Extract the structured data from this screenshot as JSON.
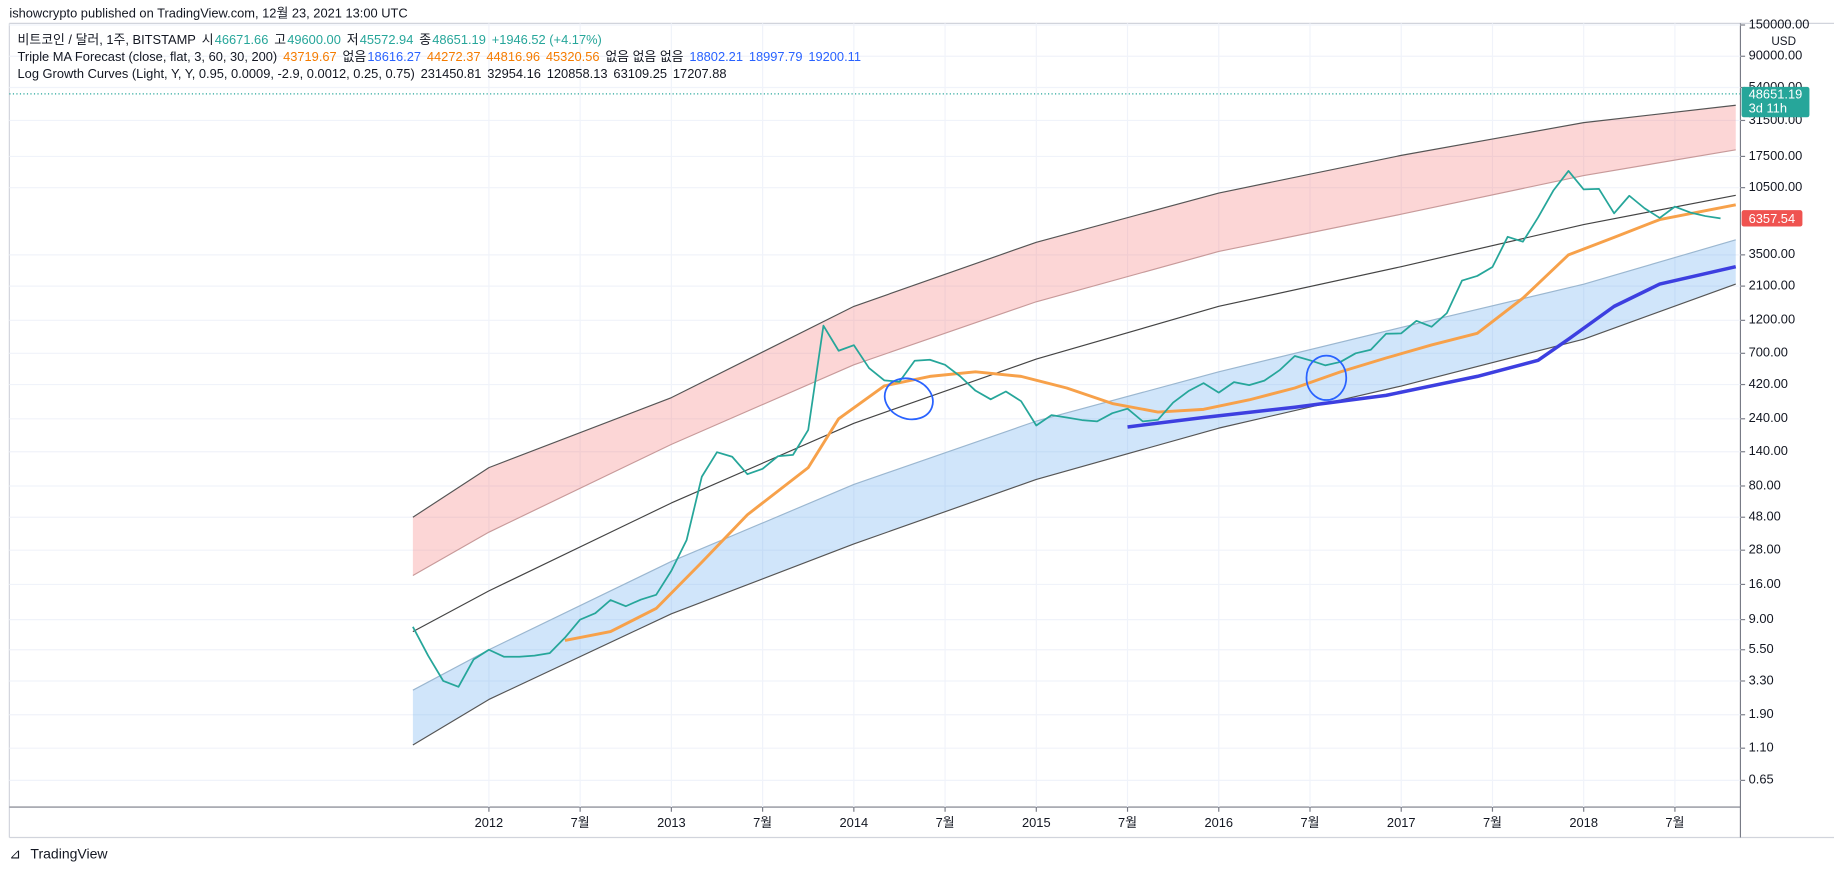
{
  "header": {
    "byline": "ishowcrypto published on TradingView.com, 12월 23, 2021 13:00 UTC",
    "legend": [
      {
        "label": "비트코인 / 달러, 1주, BITSTAMP",
        "items": [
          {
            "text": "시",
            "color": "#131722"
          },
          {
            "text": "46671.66",
            "color": "#26a69a"
          },
          {
            "text": "고",
            "color": "#131722"
          },
          {
            "text": "49600.00",
            "color": "#26a69a"
          },
          {
            "text": "저",
            "color": "#131722"
          },
          {
            "text": "45572.94",
            "color": "#26a69a"
          },
          {
            "text": "종",
            "color": "#131722"
          },
          {
            "text": "48651.19",
            "color": "#26a69a"
          },
          {
            "text": "+1946.52 (+4.17%)",
            "color": "#26a69a"
          }
        ]
      },
      {
        "label": "Triple MA Forecast (close, flat, 3, 60, 30, 200)",
        "items": [
          {
            "text": "43719.67",
            "color": "#f57c00"
          },
          {
            "text": "없음",
            "color": "#131722"
          },
          {
            "text": "18616.27",
            "color": "#2962ff"
          },
          {
            "text": "44272.37",
            "color": "#f57c00"
          },
          {
            "text": "44816.96",
            "color": "#f57c00"
          },
          {
            "text": "45320.56",
            "color": "#f57c00"
          },
          {
            "text": "없음 없음 없음",
            "color": "#131722"
          },
          {
            "text": "18802.21",
            "color": "#2962ff"
          },
          {
            "text": "18997.79",
            "color": "#2962ff"
          },
          {
            "text": "19200.11",
            "color": "#2962ff"
          }
        ]
      },
      {
        "label": "Log Growth Curves (Light, Y, Y, 0.95, 0.0009, -2.9, 0.0012, 0.25, 0.75)",
        "items": [
          {
            "text": "231450.81",
            "color": "#131722"
          },
          {
            "text": "32954.16",
            "color": "#131722"
          },
          {
            "text": "120858.13",
            "color": "#131722"
          },
          {
            "text": "63109.25",
            "color": "#131722"
          },
          {
            "text": "17207.88",
            "color": "#131722"
          }
        ]
      }
    ],
    "footer": "TradingView"
  },
  "chart_data": {
    "type": "line",
    "log_scale": true,
    "grid": true,
    "currency": "USD",
    "last_price": 48651.19,
    "countdown": "3d 11h",
    "xlim": [
      "2009-05",
      "2018-11"
    ],
    "ylim": [
      0.42,
      160000
    ],
    "xticks": [
      {
        "value": "2012-01",
        "label": "2012"
      },
      {
        "value": "2012-07",
        "label": "7월"
      },
      {
        "value": "2013-01",
        "label": "2013"
      },
      {
        "value": "2013-07",
        "label": "7월"
      },
      {
        "value": "2014-01",
        "label": "2014"
      },
      {
        "value": "2014-07",
        "label": "7월"
      },
      {
        "value": "2015-01",
        "label": "2015"
      },
      {
        "value": "2015-07",
        "label": "7월"
      },
      {
        "value": "2016-01",
        "label": "2016"
      },
      {
        "value": "2016-07",
        "label": "7월"
      },
      {
        "value": "2017-01",
        "label": "2017"
      },
      {
        "value": "2017-07",
        "label": "7월"
      },
      {
        "value": "2018-01",
        "label": "2018"
      },
      {
        "value": "2018-07",
        "label": "7월"
      }
    ],
    "yticks": [
      {
        "value": 150000,
        "label": "150000.00"
      },
      {
        "value": 90000,
        "label": "90000.00"
      },
      {
        "value": 54000,
        "label": "54000.00"
      },
      {
        "value": 31500,
        "label": "31500.00"
      },
      {
        "value": 17500,
        "label": "17500.00"
      },
      {
        "value": 10500,
        "label": "10500.00"
      },
      {
        "value": 3500,
        "label": "3500.00"
      },
      {
        "value": 2100,
        "label": "2100.00"
      },
      {
        "value": 1200,
        "label": "1200.00"
      },
      {
        "value": 700,
        "label": "700.00"
      },
      {
        "value": 420,
        "label": "420.00"
      },
      {
        "value": 240,
        "label": "240.00"
      },
      {
        "value": 140,
        "label": "140.00"
      },
      {
        "value": 80,
        "label": "80.00"
      },
      {
        "value": 48,
        "label": "48.00"
      },
      {
        "value": 28,
        "label": "28.00"
      },
      {
        "value": 16,
        "label": "16.00"
      },
      {
        "value": 9,
        "label": "9.00"
      },
      {
        "value": 5.5,
        "label": "5.50"
      },
      {
        "value": 3.3,
        "label": "3.30"
      },
      {
        "value": 1.9,
        "label": "1.90"
      },
      {
        "value": 1.1,
        "label": "1.10"
      },
      {
        "value": 0.65,
        "label": "0.65"
      }
    ],
    "fills": [
      {
        "between": [
          0,
          1
        ],
        "color": "rgba(244,120,120,0.3)"
      },
      {
        "between": [
          3,
          4
        ],
        "color": "rgba(100,170,240,0.3)"
      }
    ],
    "series": [
      {
        "color": "#555555",
        "width": 1,
        "x": [
          "2011-08",
          "2012-01",
          "2013-01",
          "2014-01",
          "2015-01",
          "2016-01",
          "2017-01",
          "2018-01",
          "2018-11"
        ],
        "values": [
          48,
          108,
          339,
          1507,
          4300,
          9620,
          17800,
          30400,
          40400
        ]
      },
      {
        "color": "#c89a9a",
        "width": 1,
        "x": [
          "2011-08",
          "2012-01",
          "2013-01",
          "2014-01",
          "2015-01",
          "2016-01",
          "2017-01",
          "2018-01",
          "2018-11"
        ],
        "values": [
          18.5,
          37.6,
          158,
          580,
          1626,
          3700,
          6800,
          12800,
          19500
        ]
      },
      {
        "color": "#444444",
        "width": 1,
        "x": [
          "2011-08",
          "2012-01",
          "2013-01",
          "2014-01",
          "2015-01",
          "2016-01",
          "2017-01",
          "2018-01",
          "2018-11"
        ],
        "values": [
          7.4,
          14.4,
          60.6,
          223,
          637,
          1508,
          2886,
          5745,
          9270
        ]
      },
      {
        "color": "#9bb7d0",
        "width": 1,
        "x": [
          "2011-08",
          "2012-01",
          "2013-01",
          "2014-01",
          "2015-01",
          "2016-01",
          "2017-01",
          "2018-01",
          "2018-11"
        ],
        "values": [
          2.84,
          5.5,
          23.3,
          82,
          231,
          517,
          1068,
          2167,
          4480
        ]
      },
      {
        "color": "#555555",
        "width": 1,
        "x": [
          "2011-08",
          "2012-01",
          "2013-01",
          "2014-01",
          "2015-01",
          "2016-01",
          "2017-01",
          "2018-01",
          "2018-11"
        ],
        "values": [
          1.16,
          2.44,
          9.9,
          31,
          89,
          206,
          410,
          882,
          2170
        ]
      },
      {
        "color": "#f7a14a",
        "width": 2.5,
        "x": [
          "2012-06",
          "2012-09",
          "2012-12",
          "2013-03",
          "2013-06",
          "2013-10",
          "2013-12",
          "2014-03",
          "2014-06",
          "2014-09",
          "2014-12",
          "2015-03",
          "2015-06",
          "2015-09",
          "2015-12",
          "2016-03",
          "2016-06",
          "2016-09",
          "2016-12",
          "2017-03",
          "2017-06",
          "2017-09",
          "2017-12",
          "2018-03",
          "2018-06",
          "2018-11"
        ],
        "values": [
          6.4,
          7.4,
          10.8,
          23,
          50,
          108,
          240,
          411,
          480,
          517,
          480,
          397,
          308,
          268,
          280,
          327,
          397,
          517,
          648,
          803,
          971,
          1724,
          3500,
          4660,
          6230,
          7940
        ]
      },
      {
        "color": "#3d3fe0",
        "width": 3,
        "x": [
          "2015-07",
          "2015-12",
          "2016-06",
          "2016-12",
          "2017-06",
          "2017-10",
          "2017-12",
          "2018-03",
          "2018-06",
          "2018-11"
        ],
        "values": [
          210,
          245,
          290,
          352,
          480,
          624,
          882,
          1508,
          2170,
          2886
        ]
      },
      {
        "color": "#26a69a",
        "width": 1.5,
        "last_color": "#ef5350",
        "x": [
          "2011-08",
          "2011-09",
          "2011-10",
          "2011-11",
          "2011-12",
          "2012-01",
          "2012-02",
          "2012-03",
          "2012-04",
          "2012-05",
          "2012-06",
          "2012-07",
          "2012-08",
          "2012-09",
          "2012-10",
          "2012-11",
          "2012-12",
          "2013-01",
          "2013-02",
          "2013-03",
          "2013-04",
          "2013-05",
          "2013-06",
          "2013-07",
          "2013-08",
          "2013-09",
          "2013-10",
          "2013-11",
          "2013-12",
          "2014-01",
          "2014-02",
          "2014-03",
          "2014-04",
          "2014-05",
          "2014-06",
          "2014-07",
          "2014-08",
          "2014-09",
          "2014-10",
          "2014-11",
          "2014-12",
          "2015-01",
          "2015-02",
          "2015-03",
          "2015-04",
          "2015-05",
          "2015-06",
          "2015-07",
          "2015-08",
          "2015-09",
          "2015-10",
          "2015-11",
          "2015-12",
          "2016-01",
          "2016-02",
          "2016-03",
          "2016-04",
          "2016-05",
          "2016-06",
          "2016-07",
          "2016-08",
          "2016-09",
          "2016-10",
          "2016-11",
          "2016-12",
          "2017-01",
          "2017-02",
          "2017-03",
          "2017-04",
          "2017-05",
          "2017-06",
          "2017-07",
          "2017-08",
          "2017-09",
          "2017-10",
          "2017-11",
          "2017-12",
          "2018-01",
          "2018-02",
          "2018-03",
          "2018-04",
          "2018-05",
          "2018-06",
          "2018-07",
          "2018-08",
          "2018-09",
          "2018-10"
        ],
        "values": [
          8,
          5,
          3.3,
          3,
          4.7,
          5.5,
          4.9,
          4.9,
          5,
          5.2,
          6.7,
          9,
          10,
          12.4,
          11.2,
          12.5,
          13.5,
          20,
          33,
          93,
          139,
          129,
          97,
          106,
          130,
          133,
          200,
          1100,
          730,
          800,
          550,
          450,
          440,
          620,
          630,
          580,
          480,
          380,
          330,
          375,
          320,
          215,
          255,
          245,
          235,
          230,
          263,
          283,
          230,
          236,
          313,
          377,
          430,
          368,
          437,
          416,
          448,
          531,
          670,
          624,
          575,
          608,
          700,
          742,
          963,
          970,
          1190,
          1080,
          1350,
          2300,
          2480,
          2870,
          4700,
          4340,
          6450,
          10000,
          13800,
          10200,
          10300,
          6900,
          9200,
          7500,
          6400,
          7700,
          7000,
          6600,
          6357.54
        ]
      }
    ]
  }
}
